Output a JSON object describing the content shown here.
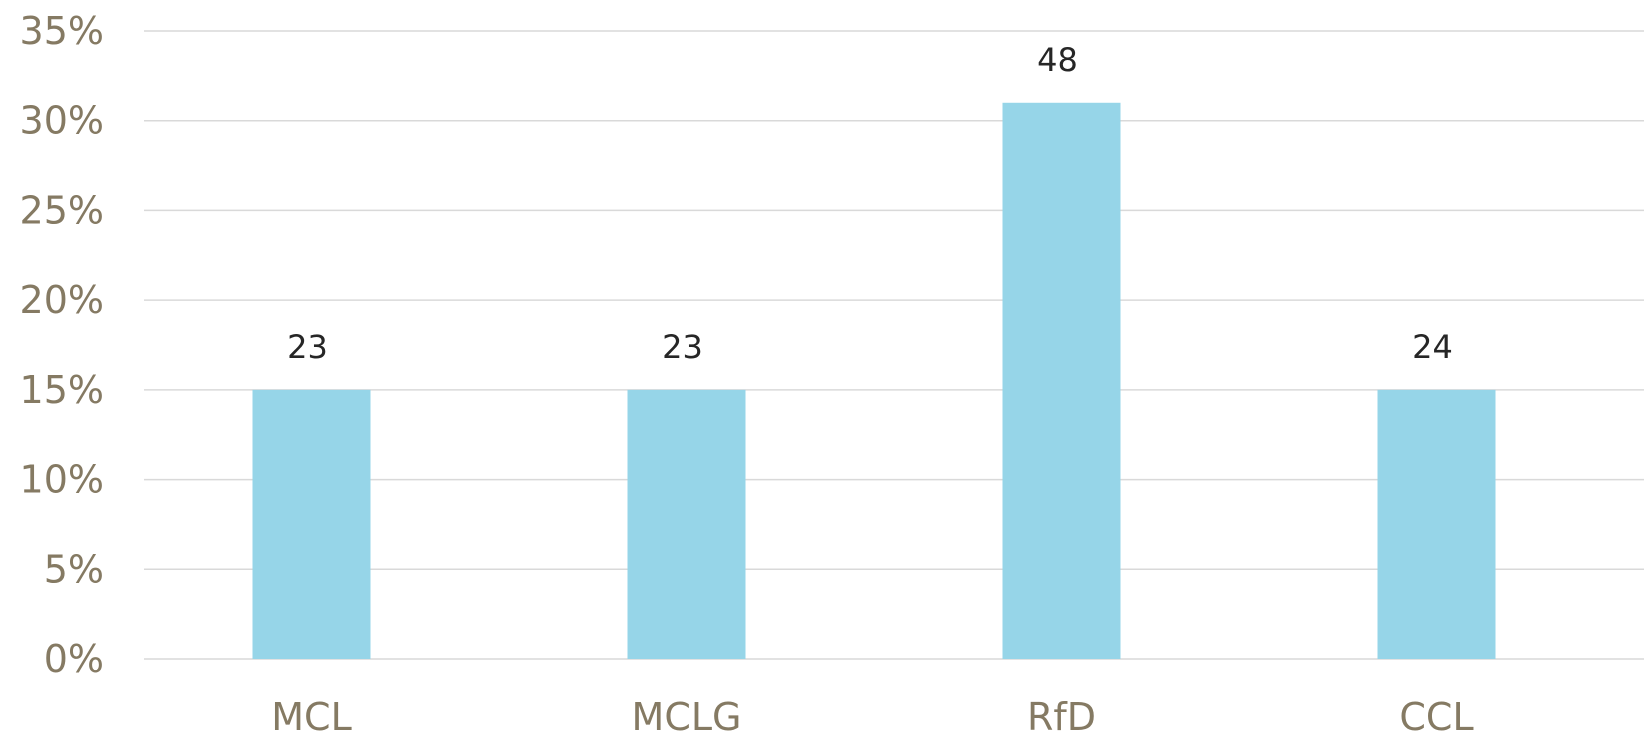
{
  "chart_data": {
    "type": "bar",
    "categories": [
      "MCL",
      "MCLG",
      "RfD",
      "CCL"
    ],
    "values": [
      0.15,
      0.15,
      0.31,
      0.15
    ],
    "data_labels": [
      "23",
      "23",
      "48",
      "24"
    ],
    "ylim": [
      0,
      0.35
    ],
    "yticks": [
      {
        "value": 0,
        "label": "0%"
      },
      {
        "value": 0.05,
        "label": "5%"
      },
      {
        "value": 0.1,
        "label": "10%"
      },
      {
        "value": 0.15,
        "label": "15%"
      },
      {
        "value": 0.2,
        "label": "20%"
      },
      {
        "value": 0.25,
        "label": "25%"
      },
      {
        "value": 0.3,
        "label": "30%"
      },
      {
        "value": 0.35,
        "label": "35%"
      }
    ],
    "grid": true,
    "legend": "none",
    "colors": {
      "bar": "#96d5e8",
      "grid": "#d9d9d9",
      "axis_text": "#857a63",
      "data_label": "#262626"
    }
  }
}
